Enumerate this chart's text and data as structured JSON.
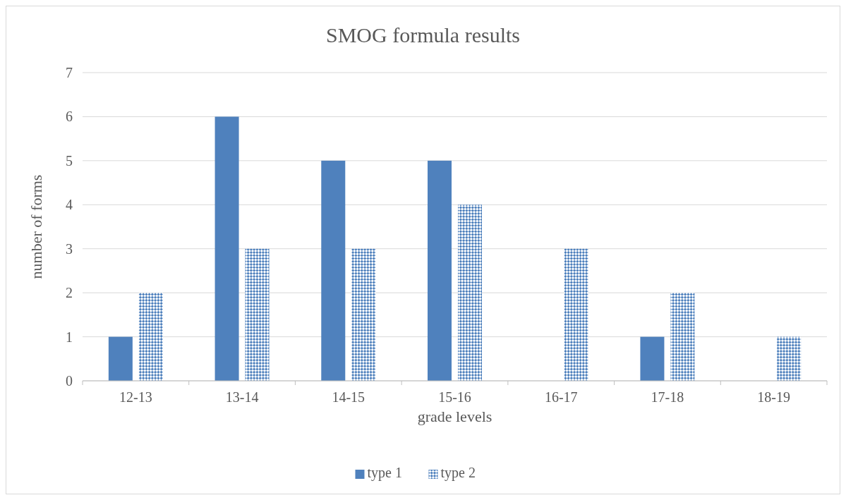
{
  "chart_data": {
    "type": "bar",
    "title": "SMOG formula results",
    "xlabel": "grade levels",
    "ylabel": "number of forms",
    "categories": [
      "12-13",
      "13-14",
      "14-15",
      "15-16",
      "16-17",
      "17-18",
      "18-19"
    ],
    "series": [
      {
        "name": "type 1",
        "color": "#4f81bd",
        "values": [
          1,
          6,
          5,
          5,
          0,
          1,
          0
        ]
      },
      {
        "name": "type 2",
        "color": "#4f81bd",
        "values": [
          2,
          3,
          3,
          4,
          3,
          2,
          1
        ]
      }
    ],
    "ylim": [
      0,
      7
    ],
    "yticks": [
      0,
      1,
      2,
      3,
      4,
      5,
      6,
      7
    ],
    "grid": "y",
    "legend": "bottom"
  }
}
